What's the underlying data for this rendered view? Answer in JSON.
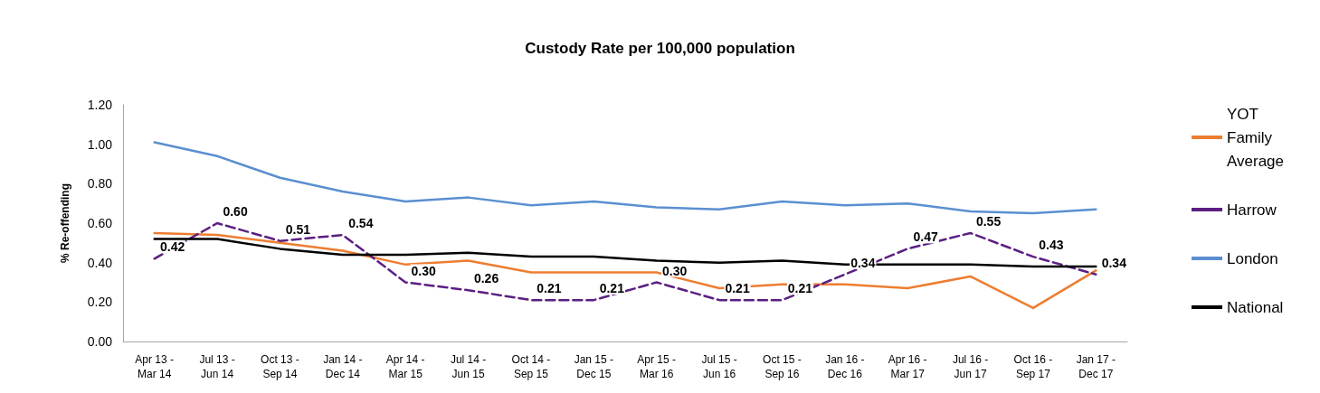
{
  "chart_data": {
    "type": "line",
    "title": "Custody Rate per 100,000 population",
    "ylabel": "% Re-offending",
    "categories": [
      "Apr 13 -\nMar 14",
      "Jul 13 -\nJun 14",
      "Oct 13 -\nSep 14",
      "Jan 14 -\nDec 14",
      "Apr 14 -\nMar 15",
      "Jul 14 -\nJun 15",
      "Oct 14 -\nSep 15",
      "Jan 15 -\nDec 15",
      "Apr 15 -\nMar 16",
      "Jul 15 -\nJun 16",
      "Oct 15 -\nSep 16",
      "Jan 16 -\nDec 16",
      "Apr 16 -\nMar 17",
      "Jul 16 -\nJun 17",
      "Oct 16 -\nSep 17",
      "Jan 17 -\nDec 17"
    ],
    "series": [
      {
        "name": "YOT Family Average",
        "color": "#ed7d31",
        "line_style": "solid",
        "values": [
          0.55,
          0.54,
          0.5,
          0.46,
          0.39,
          0.41,
          0.35,
          0.35,
          0.35,
          0.27,
          0.29,
          0.29,
          0.27,
          0.33,
          0.17,
          0.36
        ]
      },
      {
        "name": "Harrow",
        "color": "#5b1f82",
        "line_style": "dashed",
        "values": [
          0.42,
          0.6,
          0.51,
          0.54,
          0.3,
          0.26,
          0.21,
          0.21,
          0.3,
          0.21,
          0.21,
          0.34,
          0.47,
          0.55,
          0.43,
          0.34
        ],
        "value_labels": [
          "0.42",
          "0.60",
          "0.51",
          "0.54",
          "0.30",
          "0.26",
          "0.21",
          "0.21",
          "0.30",
          "0.21",
          "0.21",
          "0.34",
          "0.47",
          "0.55",
          "0.43",
          "0.34"
        ]
      },
      {
        "name": "London",
        "color": "#5b8fd0",
        "line_style": "solid",
        "values": [
          1.01,
          0.94,
          0.83,
          0.76,
          0.71,
          0.73,
          0.69,
          0.71,
          0.68,
          0.67,
          0.71,
          0.69,
          0.7,
          0.66,
          0.65,
          0.67
        ]
      },
      {
        "name": "National",
        "color": "#000000",
        "line_style": "solid",
        "values": [
          0.52,
          0.52,
          0.47,
          0.44,
          0.44,
          0.45,
          0.43,
          0.43,
          0.41,
          0.4,
          0.41,
          0.39,
          0.39,
          0.39,
          0.38,
          0.38
        ]
      }
    ],
    "ylim": [
      0,
      1.2
    ],
    "yticks": [
      {
        "value": 0,
        "label": "0.00"
      },
      {
        "value": 0.2,
        "label": "0.20"
      },
      {
        "value": 0.4,
        "label": "0.40"
      },
      {
        "value": 0.6,
        "label": "0.60"
      },
      {
        "value": 0.8,
        "label": "0.80"
      },
      {
        "value": 1.0,
        "label": "1.00"
      },
      {
        "value": 1.2,
        "label": "1.20"
      }
    ],
    "grid": false,
    "legend": "right",
    "marker": "none"
  }
}
